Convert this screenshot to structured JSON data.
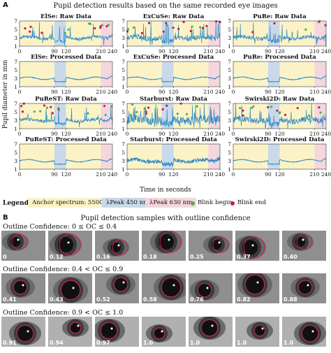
{
  "panel_a": {
    "letter": "A",
    "title": "Pupil detection results based on the same recorded eye images",
    "xlabel": "Time in seconds",
    "ylabel": "Pupil diameter in mm"
  },
  "chart_data": {
    "type": "line",
    "x_ticks": [
      0,
      90,
      120,
      210,
      240
    ],
    "y_ticks": [
      1,
      3,
      5,
      7
    ],
    "xlim": [
      0,
      240
    ],
    "ylim": [
      1,
      7
    ],
    "bands": [
      {
        "from": 0,
        "to": 90,
        "color": "#fbf3c6"
      },
      {
        "from": 90,
        "to": 120,
        "color": "#c9d9ea"
      },
      {
        "from": 120,
        "to": 210,
        "color": "#fbf3c6"
      },
      {
        "from": 210,
        "to": 240,
        "color": "#f4d6dd"
      }
    ],
    "series_color": "#2a89c4",
    "blink_begin_color": "#4caf50",
    "blink_end_color": "#c2185b",
    "subplots": [
      {
        "title": "ElSe: Raw Data",
        "kind": "raw",
        "noise": 0.35
      },
      {
        "title": "ExCuSe: Raw Data",
        "kind": "raw",
        "noise": 0.6
      },
      {
        "title": "PuRe: Raw Data",
        "kind": "raw",
        "noise": 0.45
      },
      {
        "title": "ElSe: Processed Data",
        "kind": "processed"
      },
      {
        "title": "ExCuSe: Processed Data",
        "kind": "processed"
      },
      {
        "title": "PuRe: Processed Data",
        "kind": "processed"
      },
      {
        "title": "PuReST: Raw Data",
        "kind": "raw",
        "noise": 0.4
      },
      {
        "title": "Starburst: Raw Data",
        "kind": "raw",
        "noise": 1.0
      },
      {
        "title": "Swirski2D: Raw Data",
        "kind": "raw",
        "noise": 0.7
      },
      {
        "title": "PuReST: Processed Data",
        "kind": "processed"
      },
      {
        "title": "Starburst: Processed Data",
        "kind": "processed_noisy"
      },
      {
        "title": "Swirski2D: Processed Data",
        "kind": "processed"
      }
    ]
  },
  "legend": {
    "title": "Legend",
    "anchor": "Anchor spectrum: 5500 K",
    "peak450": "λPeak 450 nm",
    "peak630": "λPeak 630 nm",
    "blink_begin": "Blink begin",
    "blink_end": "Blink end"
  },
  "panel_b": {
    "letter": "B",
    "title": "Pupil detection samples with outline confidence",
    "rows": [
      {
        "title": "Outline Confidence: 0 ≤ OC ≤ 0.4",
        "values": [
          "0",
          "0.12",
          "0.16",
          "0.18",
          "0.25",
          "0.37",
          "0.40"
        ]
      },
      {
        "title": "Outline Confidence: 0.4 < OC ≤ 0.9",
        "values": [
          "0.41",
          "0.43",
          "0.52",
          "0.58",
          "0.76",
          "0.82",
          "0.88"
        ]
      },
      {
        "title": "Outline Confidence: 0.9 < OC ≤ 1.0",
        "values": [
          "0.91",
          "0.94",
          "0.97",
          "1.0",
          "1.0",
          "1.0",
          "1.0"
        ]
      }
    ]
  }
}
